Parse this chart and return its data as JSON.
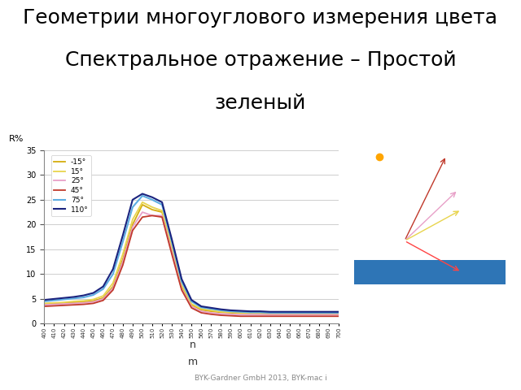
{
  "title_line1": "Геометрии многоуглового измерения цвета",
  "title_line2": "Спектральное отражение – Простой",
  "title_line3": "зеленый",
  "title_fontsize": 18,
  "ylabel": "R%",
  "footer": "BYK-Gardner GmbH 2013, BYK-mac i",
  "footer_color": "#888888",
  "slide_bg": "#ffffff",
  "header_bar_color": "#1F3864",
  "chart_bg": "#ffffff",
  "outer_bg": "#1F4E79",
  "right_panel_bg": "#1F4E79",
  "right_inner_bg": "#4472C4",
  "ylim": [
    0,
    35
  ],
  "yticks": [
    0,
    5,
    10,
    15,
    20,
    25,
    30,
    35
  ],
  "wavelengths": [
    400,
    410,
    420,
    430,
    440,
    450,
    460,
    470,
    480,
    490,
    500,
    510,
    520,
    530,
    540,
    550,
    560,
    570,
    580,
    590,
    600,
    610,
    620,
    630,
    640,
    650,
    660,
    670,
    680,
    690,
    700
  ],
  "series": {
    "-15°": {
      "color": "#D4AC0D",
      "lw": 1.3,
      "values": [
        4.0,
        4.1,
        4.2,
        4.3,
        4.4,
        4.6,
        5.2,
        7.5,
        13.0,
        20.0,
        24.0,
        23.0,
        22.5,
        15.0,
        7.5,
        3.8,
        2.8,
        2.5,
        2.3,
        2.2,
        2.1,
        2.1,
        2.1,
        2.0,
        2.0,
        2.0,
        2.0,
        2.0,
        2.0,
        2.0,
        2.0
      ]
    },
    "15°": {
      "color": "#E8D44D",
      "lw": 1.3,
      "values": [
        4.1,
        4.2,
        4.3,
        4.5,
        4.6,
        4.9,
        5.6,
        8.2,
        14.0,
        21.0,
        24.5,
        23.5,
        22.8,
        15.3,
        7.8,
        4.0,
        3.0,
        2.7,
        2.4,
        2.3,
        2.2,
        2.2,
        2.1,
        2.1,
        2.1,
        2.1,
        2.1,
        2.1,
        2.1,
        2.1,
        2.1
      ]
    },
    "25°": {
      "color": "#E8A0C8",
      "lw": 1.3,
      "values": [
        3.8,
        3.9,
        4.0,
        4.1,
        4.2,
        4.4,
        5.0,
        7.2,
        12.5,
        19.5,
        22.5,
        21.8,
        21.8,
        14.5,
        7.0,
        3.5,
        2.5,
        2.2,
        2.0,
        1.9,
        1.8,
        1.8,
        1.8,
        1.8,
        1.8,
        1.8,
        1.8,
        1.8,
        1.8,
        1.8,
        1.8
      ]
    },
    "45°": {
      "color": "#C0392B",
      "lw": 1.3,
      "values": [
        3.5,
        3.6,
        3.7,
        3.8,
        3.9,
        4.1,
        4.7,
        6.8,
        11.8,
        18.8,
        21.5,
        21.8,
        21.5,
        14.0,
        6.8,
        3.2,
        2.2,
        1.9,
        1.7,
        1.6,
        1.5,
        1.5,
        1.5,
        1.5,
        1.5,
        1.5,
        1.5,
        1.5,
        1.5,
        1.5,
        1.5
      ]
    },
    "75°": {
      "color": "#5DADE2",
      "lw": 1.5,
      "values": [
        4.5,
        4.7,
        4.9,
        5.1,
        5.3,
        5.8,
        7.0,
        10.0,
        16.5,
        23.5,
        25.8,
        25.0,
        24.0,
        16.5,
        8.5,
        4.5,
        3.3,
        3.0,
        2.7,
        2.5,
        2.4,
        2.3,
        2.3,
        2.2,
        2.2,
        2.2,
        2.2,
        2.2,
        2.2,
        2.2,
        2.2
      ]
    },
    "110°": {
      "color": "#1A237E",
      "lw": 1.5,
      "values": [
        4.8,
        5.0,
        5.2,
        5.4,
        5.7,
        6.2,
        7.5,
        11.0,
        17.8,
        25.0,
        26.2,
        25.5,
        24.5,
        17.0,
        9.0,
        4.8,
        3.5,
        3.2,
        2.9,
        2.7,
        2.6,
        2.5,
        2.5,
        2.4,
        2.4,
        2.4,
        2.4,
        2.4,
        2.4,
        2.4,
        2.4
      ]
    }
  },
  "legend_order": [
    "-15°",
    "15°",
    "25°",
    "45°",
    "75°",
    "110°"
  ]
}
